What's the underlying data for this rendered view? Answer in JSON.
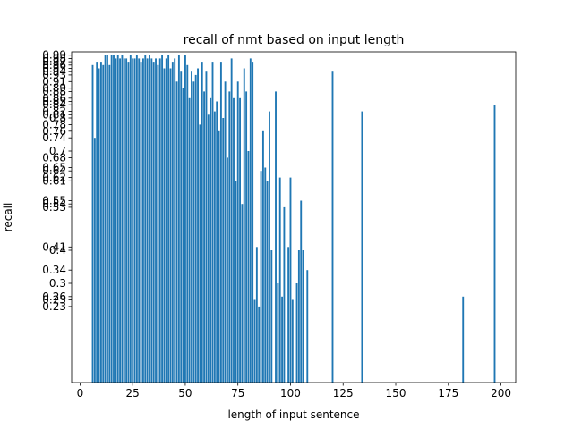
{
  "chart_data": {
    "type": "bar",
    "title": "recall of nmt based on input length",
    "xlabel": "length of input sentence",
    "ylabel": "recall",
    "xlim": [
      -4,
      207
    ],
    "ylim": [
      0,
      1
    ],
    "xticks": [
      0,
      25,
      50,
      75,
      100,
      125,
      150,
      175,
      200
    ],
    "xtick_labels": [
      "0",
      "25",
      "50",
      "75",
      "100",
      "125",
      "150",
      "175",
      "200"
    ],
    "grid": false,
    "legend": "none",
    "bar_color": "#1f77b4",
    "bar_width": 0.8,
    "x": [
      6,
      7,
      8,
      9,
      10,
      11,
      12,
      13,
      14,
      15,
      16,
      17,
      18,
      19,
      20,
      21,
      22,
      23,
      24,
      25,
      26,
      27,
      28,
      29,
      30,
      31,
      32,
      33,
      34,
      35,
      36,
      37,
      38,
      39,
      40,
      41,
      42,
      43,
      44,
      45,
      46,
      47,
      48,
      49,
      50,
      51,
      52,
      53,
      54,
      55,
      56,
      57,
      58,
      59,
      60,
      61,
      62,
      63,
      64,
      65,
      66,
      67,
      68,
      69,
      70,
      71,
      72,
      73,
      74,
      75,
      76,
      77,
      78,
      79,
      80,
      81,
      82,
      83,
      84,
      85,
      86,
      87,
      88,
      89,
      90,
      91,
      93,
      94,
      95,
      96,
      97,
      99,
      100,
      101,
      103,
      104,
      105,
      106,
      108,
      120,
      134,
      182,
      197
    ],
    "values": [
      0.96,
      0.74,
      0.97,
      0.95,
      0.97,
      0.96,
      0.99,
      0.99,
      0.96,
      0.99,
      0.99,
      0.98,
      0.99,
      0.98,
      0.99,
      0.98,
      0.98,
      0.97,
      0.99,
      0.98,
      0.98,
      0.99,
      0.98,
      0.97,
      0.98,
      0.99,
      0.98,
      0.99,
      0.98,
      0.97,
      0.98,
      0.96,
      0.98,
      0.99,
      0.95,
      0.98,
      0.99,
      0.95,
      0.97,
      0.98,
      0.91,
      0.99,
      0.94,
      0.89,
      0.99,
      0.96,
      0.86,
      0.94,
      0.91,
      0.93,
      0.95,
      0.78,
      0.97,
      0.88,
      0.94,
      0.81,
      0.86,
      0.97,
      0.82,
      0.85,
      0.76,
      0.97,
      0.8,
      0.91,
      0.68,
      0.88,
      0.98,
      0.86,
      0.61,
      0.91,
      0.86,
      0.54,
      0.95,
      0.88,
      0.7,
      0.98,
      0.97,
      0.25,
      0.41,
      0.23,
      0.64,
      0.76,
      0.65,
      0.61,
      0.82,
      0.4,
      0.88,
      0.3,
      0.62,
      0.26,
      0.53,
      0.41,
      0.62,
      0.25,
      0.3,
      0.4,
      0.55,
      0.4,
      0.34,
      0.94,
      0.82,
      0.26,
      0.84
    ]
  }
}
